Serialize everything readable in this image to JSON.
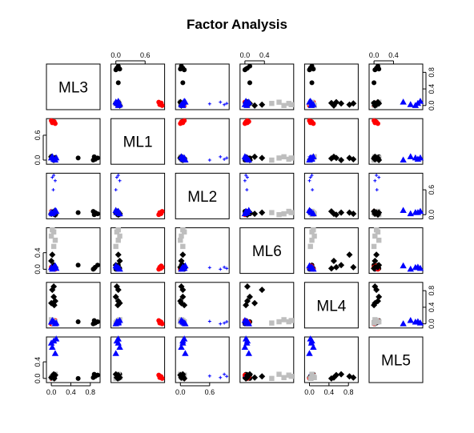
{
  "chart_data": {
    "type": "scatter",
    "subtype": "pairs-matrix",
    "title": "Factor Analysis",
    "variables": [
      "ML3",
      "ML1",
      "ML2",
      "ML6",
      "ML4",
      "ML5"
    ],
    "axis_range": [
      -0.1,
      1.0
    ],
    "tick_values": [
      0.0,
      0.4,
      0.8
    ],
    "tick_labels": {
      "ML3": [
        "0.0",
        "0.4",
        "0.8"
      ],
      "ML1": [
        "0.0",
        "0.6"
      ],
      "ML2": [
        "0.0",
        "0.6"
      ],
      "ML6": [
        "0.0",
        "0.4"
      ],
      "ML4": [
        "0.0",
        "0.4",
        "0.8"
      ],
      "ML5": [
        "0.0",
        "0.4"
      ]
    },
    "ticks_positions": {
      "ML3": [
        0.0,
        0.4,
        0.8
      ],
      "ML1": [
        0.0,
        0.6
      ],
      "ML2": [
        0.0,
        0.6
      ],
      "ML6": [
        0.0,
        0.4
      ],
      "ML4": [
        0.0,
        0.4,
        0.8
      ],
      "ML5": [
        0.0,
        0.4
      ]
    },
    "axis_placement": {
      "top": [
        "ML1",
        "ML6",
        "ML5"
      ],
      "bottom": [
        "ML3",
        "ML2",
        "ML4"
      ],
      "left": [
        "ML1",
        "ML6",
        "ML5"
      ],
      "right": [
        "ML3",
        "ML2",
        "ML4"
      ]
    },
    "grid": false,
    "legend": "none",
    "groups": [
      {
        "color": "#000000",
        "shape": "circle",
        "points": [
          {
            "ML3": 0.95,
            "ML1": 0.05,
            "ML2": 0.02,
            "ML6": 0.1,
            "ML4": 0.05,
            "ML5": 0.08
          },
          {
            "ML3": 0.9,
            "ML1": 0.02,
            "ML2": 0.05,
            "ML6": 0.05,
            "ML4": 0.02,
            "ML5": 0.05
          },
          {
            "ML3": 0.88,
            "ML1": 0.08,
            "ML2": 0.0,
            "ML6": 0.02,
            "ML4": 0.08,
            "ML5": 0.1
          },
          {
            "ML3": 0.86,
            "ML1": 0.0,
            "ML2": 0.08,
            "ML6": 0.0,
            "ML4": 0.0,
            "ML5": 0.02
          },
          {
            "ML3": 0.55,
            "ML1": 0.05,
            "ML2": 0.05,
            "ML6": 0.1,
            "ML4": 0.05,
            "ML5": 0.0
          }
        ]
      },
      {
        "color": "#ff0000",
        "shape": "circle",
        "points": [
          {
            "ML3": 0.05,
            "ML1": 0.92,
            "ML2": 0.02,
            "ML6": 0.02,
            "ML4": 0.05,
            "ML5": 0.05
          },
          {
            "ML3": 0.02,
            "ML1": 0.9,
            "ML2": 0.05,
            "ML6": 0.05,
            "ML4": 0.02,
            "ML5": 0.02
          },
          {
            "ML3": 0.08,
            "ML1": 0.88,
            "ML2": 0.0,
            "ML6": 0.0,
            "ML4": 0.08,
            "ML5": 0.08
          },
          {
            "ML3": 0.0,
            "ML1": 0.95,
            "ML2": 0.08,
            "ML6": 0.05,
            "ML4": 0.0,
            "ML5": 0.0
          },
          {
            "ML3": 0.06,
            "ML1": 0.93,
            "ML2": 0.03,
            "ML6": 0.08,
            "ML4": 0.04,
            "ML5": 0.04
          }
        ]
      },
      {
        "color": "#0000ff",
        "shape": "plus",
        "points": [
          {
            "ML3": 0.05,
            "ML1": 0.05,
            "ML2": 0.95,
            "ML6": 0.02,
            "ML4": 0.05,
            "ML5": 0.05
          },
          {
            "ML3": 0.02,
            "ML1": 0.02,
            "ML2": 0.9,
            "ML6": 0.05,
            "ML4": 0.02,
            "ML5": 0.1
          },
          {
            "ML3": 0.08,
            "ML1": 0.08,
            "ML2": 0.82,
            "ML6": 0.0,
            "ML4": 0.0,
            "ML5": 0.02
          },
          {
            "ML3": 0.04,
            "ML1": 0.0,
            "ML2": 0.6,
            "ML6": 0.04,
            "ML4": 0.06,
            "ML5": 0.06
          }
        ]
      },
      {
        "color": "#bebebe",
        "shape": "square",
        "points": [
          {
            "ML3": 0.02,
            "ML1": 0.05,
            "ML2": 0.05,
            "ML6": 0.95,
            "ML4": 0.08,
            "ML5": 0.05
          },
          {
            "ML3": 0.05,
            "ML1": 0.02,
            "ML2": 0.08,
            "ML6": 0.9,
            "ML4": 0.05,
            "ML5": 0.08
          },
          {
            "ML3": 0.0,
            "ML1": 0.08,
            "ML2": 0.02,
            "ML6": 0.8,
            "ML4": 0.1,
            "ML5": 0.02
          },
          {
            "ML3": 0.05,
            "ML1": 0.0,
            "ML2": 0.05,
            "ML6": 0.55,
            "ML4": 0.02,
            "ML5": 0.0
          },
          {
            "ML3": 0.08,
            "ML1": 0.05,
            "ML2": 0.0,
            "ML6": 0.7,
            "ML4": 0.05,
            "ML5": 0.1
          }
        ]
      },
      {
        "color": "#000000",
        "shape": "diamond",
        "points": [
          {
            "ML3": 0.05,
            "ML1": 0.02,
            "ML2": 0.02,
            "ML6": 0.05,
            "ML4": 0.9,
            "ML5": 0.02
          },
          {
            "ML3": 0.02,
            "ML1": 0.05,
            "ML2": 0.05,
            "ML6": 0.35,
            "ML4": 0.82,
            "ML5": 0.05
          },
          {
            "ML3": 0.08,
            "ML1": 0.05,
            "ML2": 0.0,
            "ML6": 0.05,
            "ML4": 0.55,
            "ML5": 0.08
          },
          {
            "ML3": 0.0,
            "ML1": 0.08,
            "ML2": 0.02,
            "ML6": 0.2,
            "ML4": 0.5,
            "ML5": 0.02
          },
          {
            "ML3": 0.05,
            "ML1": 0.0,
            "ML2": 0.05,
            "ML6": 0.1,
            "ML4": 0.65,
            "ML5": 0.1
          },
          {
            "ML3": 0.06,
            "ML1": 0.04,
            "ML2": 0.08,
            "ML6": 0.02,
            "ML4": 0.45,
            "ML5": 0.0
          }
        ]
      },
      {
        "color": "#0000ff",
        "shape": "triangle",
        "points": [
          {
            "ML3": 0.1,
            "ML1": 0.05,
            "ML2": 0.08,
            "ML6": 0.02,
            "ML4": 0.02,
            "ML5": 0.95
          },
          {
            "ML3": 0.05,
            "ML1": 0.02,
            "ML2": 0.05,
            "ML6": 0.05,
            "ML4": 0.05,
            "ML5": 0.9
          },
          {
            "ML3": 0.02,
            "ML1": 0.08,
            "ML2": 0.02,
            "ML6": 0.0,
            "ML4": 0.08,
            "ML5": 0.75
          },
          {
            "ML3": 0.08,
            "ML1": 0.0,
            "ML2": 0.1,
            "ML6": 0.08,
            "ML4": 0.0,
            "ML5": 0.6
          },
          {
            "ML3": 0.0,
            "ML1": 0.05,
            "ML2": 0.05,
            "ML6": 0.04,
            "ML4": 0.04,
            "ML5": 0.85
          }
        ]
      }
    ]
  }
}
